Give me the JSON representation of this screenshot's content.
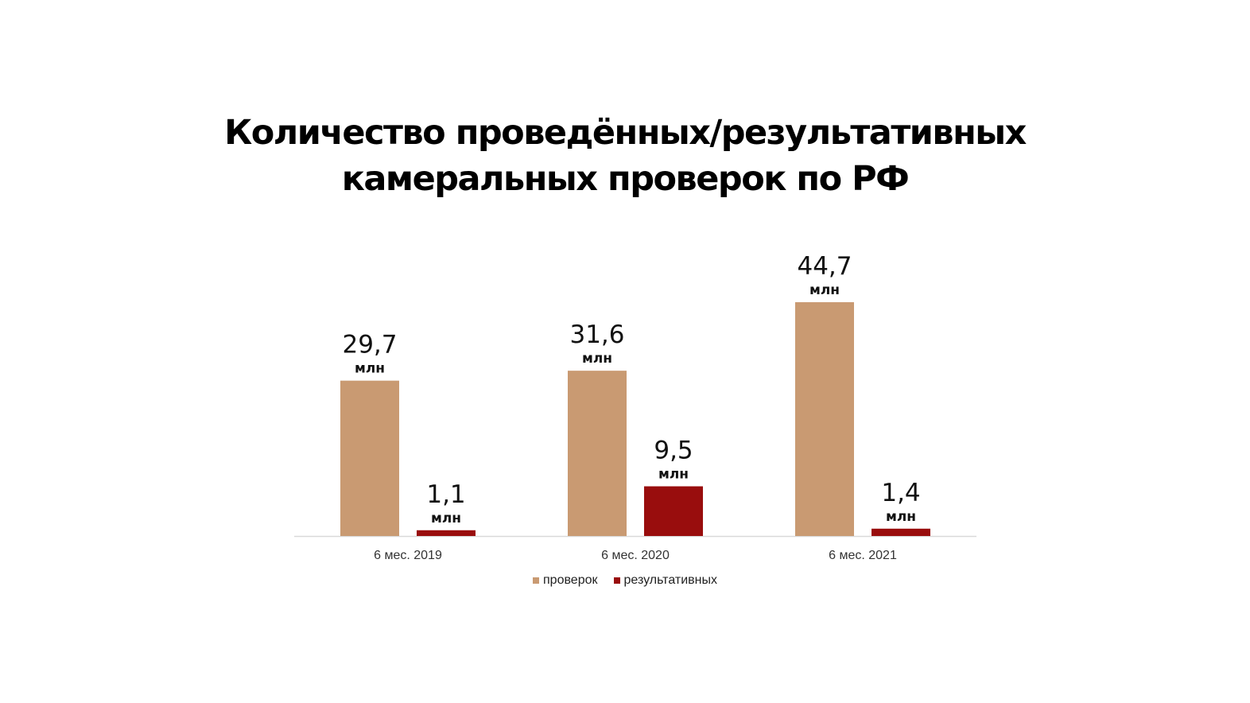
{
  "title": {
    "line1": "Количество проведённых/результативных",
    "line2": "камеральных проверок по РФ"
  },
  "chart_data": {
    "type": "bar",
    "categories": [
      "6 мес. 2019",
      "6 мес. 2020",
      "6 мес. 2021"
    ],
    "series": [
      {
        "name": "проверок",
        "values": [
          29.7,
          31.6,
          44.7
        ],
        "labels": [
          "29,7",
          "31,6",
          "44,7"
        ],
        "color": "#c99a72"
      },
      {
        "name": "результативных",
        "values": [
          1.1,
          9.5,
          1.4
        ],
        "labels": [
          "1,1",
          "9,5",
          "1,4"
        ],
        "color": "#990d0d"
      }
    ],
    "unit_label": "млн",
    "ylim": [
      0,
      44.7
    ],
    "grid": false,
    "legend": "bottom-center"
  }
}
